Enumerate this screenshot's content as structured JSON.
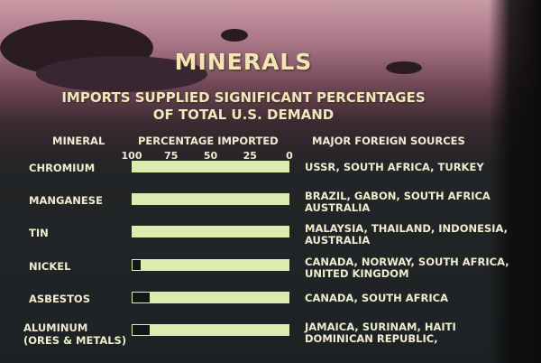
{
  "title": "MINERALS",
  "subtitle_line1": "IMPORTS SUPPLIED SIGNIFICANT PERCENTAGES",
  "subtitle_line2": "OF TOTAL U.S. DEMAND",
  "headers": {
    "mineral": "MINERAL",
    "percentage": "PERCENTAGE IMPORTED",
    "sources": "MAJOR FOREIGN SOURCES"
  },
  "chart_data": {
    "type": "bar",
    "orientation": "horizontal",
    "xlim": [
      100,
      0
    ],
    "ticks": [
      "100",
      "75",
      "50",
      "25",
      "0"
    ],
    "rows": [
      {
        "label_lines": [
          "CHROMIUM"
        ],
        "value": 100,
        "source_lines": [
          "USSR, SOUTH AFRICA, TURKEY"
        ]
      },
      {
        "label_lines": [
          "MANGANESE"
        ],
        "value": 100,
        "source_lines": [
          "BRAZIL, GABON, SOUTH AFRICA",
          "AUSTRALIA"
        ]
      },
      {
        "label_lines": [
          "TIN"
        ],
        "value": 100,
        "source_lines": [
          "MALAYSIA, THAILAND, INDONESIA,",
          "AUSTRALIA"
        ]
      },
      {
        "label_lines": [
          "NICKEL"
        ],
        "value": 94,
        "source_lines": [
          "CANADA, NORWAY, SOUTH AFRICA,",
          "UNITED KINGDOM"
        ]
      },
      {
        "label_lines": [
          "ASBESTOS"
        ],
        "value": 88,
        "source_lines": [
          "CANADA, SOUTH AFRICA"
        ]
      },
      {
        "label_lines": [
          "ALUMINUM",
          "(ORES & METALS)"
        ],
        "value": 88,
        "source_lines": [
          "JAMAICA, SURINAM, HAITI",
          "DOMINICAN REPUBLIC,"
        ]
      }
    ]
  }
}
